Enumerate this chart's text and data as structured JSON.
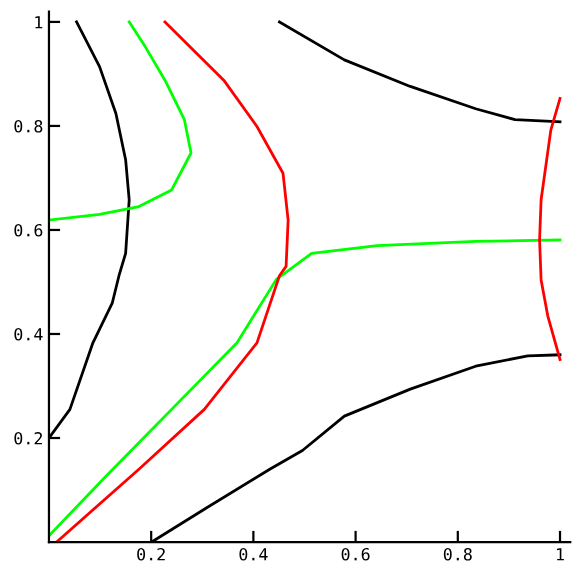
{
  "chart_data": {
    "type": "line",
    "xlim": [
      0,
      1.02
    ],
    "ylim": [
      0,
      1.02
    ],
    "xticks": [
      0.2,
      0.4,
      0.6,
      0.8,
      1
    ],
    "yticks": [
      0.2,
      0.4,
      0.6,
      0.8,
      1
    ],
    "grid": false,
    "legend": false,
    "marker": "none",
    "line_style": "solid",
    "series": [
      {
        "color": "#000000",
        "x": [
          0,
          0.041,
          0.086,
          0.124,
          0.137,
          0.15,
          0.157,
          0.15,
          0.131,
          0.099,
          0.054
        ],
        "values": [
          0.2,
          0.255,
          0.383,
          0.46,
          0.512,
          0.555,
          0.658,
          0.735,
          0.824,
          0.914,
          1.0
        ]
      },
      {
        "color": "#000000",
        "x": [
          0.451,
          0.578,
          0.707,
          0.835,
          0.912,
          1.0
        ],
        "values": [
          1.0,
          0.927,
          0.876,
          0.833,
          0.812,
          0.808
        ]
      },
      {
        "color": "#000000",
        "x": [
          0.201,
          0.304,
          0.432,
          0.496,
          0.578,
          0.707,
          0.835,
          0.937,
          1.0
        ],
        "values": [
          0,
          0.063,
          0.14,
          0.176,
          0.242,
          0.294,
          0.338,
          0.358,
          0.36
        ]
      },
      {
        "color": "#00ff00",
        "x": [
          0,
          0.099,
          0.176,
          0.24,
          0.278,
          0.265,
          0.227,
          0.188,
          0.157
        ],
        "values": [
          0.619,
          0.63,
          0.645,
          0.677,
          0.748,
          0.812,
          0.888,
          0.953,
          1.0
        ]
      },
      {
        "color": "#00ff00",
        "x": [
          0,
          0.112,
          0.24,
          0.368,
          0.445,
          0.514,
          0.642,
          0.835,
          1.0
        ],
        "values": [
          0.012,
          0.127,
          0.255,
          0.383,
          0.505,
          0.555,
          0.57,
          0.578,
          0.581
        ]
      },
      {
        "color": "#ff0000",
        "x": [
          0.015,
          0.176,
          0.304,
          0.407,
          0.451,
          0.464,
          0.468,
          0.458,
          0.407,
          0.342,
          0.227
        ],
        "values": [
          0,
          0.14,
          0.255,
          0.383,
          0.512,
          0.53,
          0.619,
          0.709,
          0.799,
          0.888,
          1.0
        ]
      },
      {
        "color": "#ff0000",
        "x": [
          1.0,
          0.982,
          0.963,
          0.96,
          0.963,
          0.976,
          1.0
        ],
        "values": [
          0.853,
          0.792,
          0.658,
          0.581,
          0.504,
          0.435,
          0.351
        ]
      }
    ]
  }
}
